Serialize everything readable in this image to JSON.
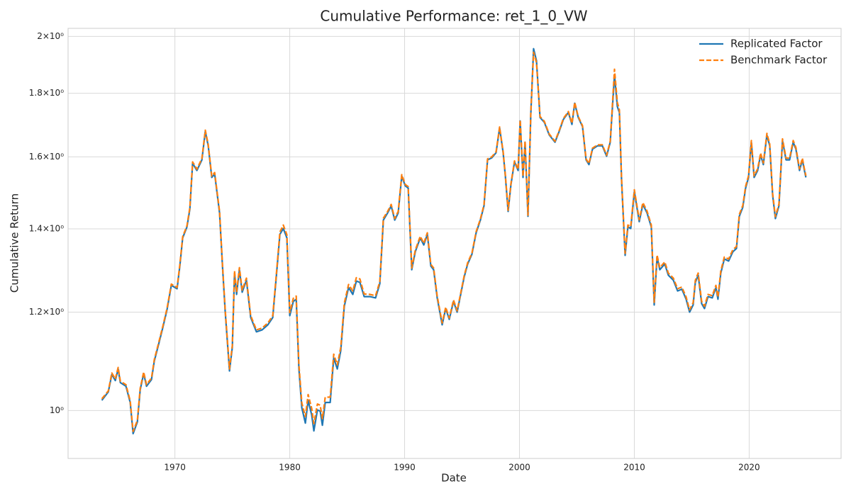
{
  "chart_data": {
    "type": "line",
    "title": "Cumulative Performance: ret_1_0_VW",
    "xlabel": "Date",
    "ylabel": "Cumulative Return",
    "yscale": "log",
    "grid": true,
    "legend": "upper right",
    "xlim": [
      1960.7,
      2028.0
    ],
    "xticks": [
      1970,
      1980,
      1990,
      2000,
      2010,
      2020
    ],
    "ylim": [
      0.915,
      2.03
    ],
    "yticks": [
      {
        "value": 1,
        "label": "10⁰"
      },
      {
        "value": 1.2,
        "label": "1.2×10⁰"
      },
      {
        "value": 1.4,
        "label": "1.4×10⁰"
      },
      {
        "value": 1.6,
        "label": "1.6×10⁰"
      },
      {
        "value": 1.8,
        "label": "1.8×10⁰"
      },
      {
        "value": 2,
        "label": "2×10⁰"
      }
    ],
    "x": [
      1963.64,
      1964.2,
      1964.51,
      1964.81,
      1965.06,
      1965.25,
      1965.74,
      1966.11,
      1966.36,
      1966.73,
      1966.98,
      1967.28,
      1967.53,
      1967.96,
      1968.21,
      1968.58,
      1968.95,
      1969.32,
      1969.69,
      1970.19,
      1970.43,
      1970.68,
      1971.05,
      1971.3,
      1971.54,
      1971.91,
      1972.35,
      1972.65,
      1972.9,
      1973.21,
      1973.46,
      1973.89,
      1974.14,
      1974.38,
      1974.75,
      1975.0,
      1975.19,
      1975.37,
      1975.62,
      1975.86,
      1976.23,
      1976.6,
      1977.1,
      1977.59,
      1978.09,
      1978.52,
      1978.83,
      1979.14,
      1979.44,
      1979.75,
      1980.0,
      1980.31,
      1980.56,
      1980.8,
      1981.05,
      1981.36,
      1981.6,
      1981.91,
      1982.1,
      1982.41,
      1982.65,
      1982.84,
      1983.09,
      1983.52,
      1983.83,
      1984.14,
      1984.44,
      1984.75,
      1985.12,
      1985.49,
      1985.8,
      1986.11,
      1986.48,
      1986.98,
      1987.47,
      1987.84,
      1988.15,
      1988.52,
      1988.83,
      1989.14,
      1989.44,
      1989.75,
      1990.06,
      1990.31,
      1990.62,
      1990.93,
      1991.36,
      1991.67,
      1991.98,
      1992.28,
      1992.53,
      1992.84,
      1993.27,
      1993.58,
      1993.89,
      1994.26,
      1994.57,
      1995.19,
      1995.49,
      1995.86,
      1996.23,
      1996.6,
      1996.91,
      1997.22,
      1997.59,
      1997.96,
      1998.27,
      1998.58,
      1998.77,
      1999.01,
      1999.26,
      1999.57,
      1999.88,
      2000.06,
      2000.31,
      2000.49,
      2000.74,
      2000.99,
      2001.23,
      2001.48,
      2001.79,
      2002.16,
      2002.59,
      2003.09,
      2003.46,
      2003.83,
      2004.26,
      2004.57,
      2004.81,
      2005.12,
      2005.49,
      2005.8,
      2006.05,
      2006.36,
      2006.79,
      2007.22,
      2007.59,
      2007.9,
      2008.27,
      2008.52,
      2008.7,
      2008.89,
      2009.2,
      2009.44,
      2009.69,
      2010.0,
      2010.43,
      2010.74,
      2011.11,
      2011.48,
      2011.73,
      2011.98,
      2012.22,
      2012.65,
      2012.96,
      2013.4,
      2013.77,
      2014.14,
      2014.51,
      2014.81,
      2015.12,
      2015.31,
      2015.56,
      2015.86,
      2016.11,
      2016.42,
      2016.79,
      2017.1,
      2017.28,
      2017.53,
      2017.84,
      2018.21,
      2018.58,
      2018.89,
      2019.14,
      2019.44,
      2019.69,
      2019.94,
      2020.19,
      2020.43,
      2020.74,
      2020.99,
      2021.23,
      2021.54,
      2021.79,
      2022.04,
      2022.28,
      2022.59,
      2022.9,
      2023.21,
      2023.52,
      2023.83,
      2024.07,
      2024.38,
      2024.63,
      2024.81,
      2024.94
    ],
    "series": [
      {
        "name": "Replicated Factor",
        "color": "#1f77b4",
        "linestyle": "solid",
        "values": [
          1.019,
          1.035,
          1.069,
          1.057,
          1.08,
          1.053,
          1.046,
          1.015,
          0.958,
          0.979,
          1.039,
          1.071,
          1.046,
          1.059,
          1.096,
          1.13,
          1.166,
          1.206,
          1.261,
          1.253,
          1.307,
          1.377,
          1.405,
          1.452,
          1.581,
          1.56,
          1.591,
          1.677,
          1.633,
          1.54,
          1.55,
          1.442,
          1.307,
          1.2,
          1.076,
          1.124,
          1.29,
          1.24,
          1.298,
          1.245,
          1.273,
          1.188,
          1.157,
          1.161,
          1.172,
          1.188,
          1.281,
          1.386,
          1.401,
          1.377,
          1.192,
          1.224,
          1.229,
          1.08,
          1.005,
          0.977,
          1.019,
          0.992,
          0.963,
          1.001,
          0.999,
          0.973,
          1.015,
          1.015,
          1.102,
          1.08,
          1.117,
          1.213,
          1.256,
          1.24,
          1.271,
          1.268,
          1.235,
          1.235,
          1.232,
          1.265,
          1.423,
          1.442,
          1.461,
          1.423,
          1.442,
          1.544,
          1.516,
          1.51,
          1.298,
          1.342,
          1.377,
          1.359,
          1.386,
          1.307,
          1.298,
          1.232,
          1.172,
          1.208,
          1.184,
          1.224,
          1.2,
          1.281,
          1.312,
          1.336,
          1.39,
          1.423,
          1.461,
          1.591,
          1.597,
          1.612,
          1.688,
          1.612,
          1.544,
          1.446,
          1.52,
          1.585,
          1.56,
          1.71,
          1.54,
          1.644,
          1.433,
          1.733,
          1.955,
          1.912,
          1.721,
          1.706,
          1.666,
          1.644,
          1.677,
          1.715,
          1.737,
          1.699,
          1.767,
          1.721,
          1.692,
          1.591,
          1.577,
          1.623,
          1.633,
          1.633,
          1.602,
          1.644,
          1.862,
          1.756,
          1.737,
          1.53,
          1.333,
          1.405,
          1.401,
          1.5,
          1.419,
          1.465,
          1.442,
          1.405,
          1.216,
          1.329,
          1.298,
          1.312,
          1.285,
          1.273,
          1.248,
          1.252,
          1.229,
          1.2,
          1.216,
          1.268,
          1.285,
          1.219,
          1.208,
          1.235,
          1.232,
          1.256,
          1.229,
          1.29,
          1.324,
          1.319,
          1.342,
          1.35,
          1.433,
          1.457,
          1.51,
          1.54,
          1.644,
          1.54,
          1.56,
          1.606,
          1.577,
          1.666,
          1.633,
          1.49,
          1.427,
          1.461,
          1.649,
          1.591,
          1.591,
          1.644,
          1.623,
          1.56,
          1.591,
          1.56,
          1.54
        ]
      },
      {
        "name": "Benchmark Factor",
        "color": "#ff7f0e",
        "linestyle": "dashed",
        "values": [
          1.022,
          1.037,
          1.072,
          1.06,
          1.083,
          1.056,
          1.049,
          1.018,
          0.962,
          0.982,
          1.042,
          1.074,
          1.049,
          1.062,
          1.099,
          1.133,
          1.169,
          1.209,
          1.264,
          1.256,
          1.31,
          1.38,
          1.408,
          1.456,
          1.585,
          1.564,
          1.595,
          1.681,
          1.637,
          1.544,
          1.554,
          1.446,
          1.311,
          1.204,
          1.08,
          1.128,
          1.295,
          1.245,
          1.303,
          1.25,
          1.278,
          1.192,
          1.161,
          1.165,
          1.176,
          1.192,
          1.286,
          1.392,
          1.41,
          1.385,
          1.199,
          1.231,
          1.236,
          1.088,
          1.014,
          0.989,
          1.03,
          1.004,
          0.976,
          1.012,
          1.01,
          0.985,
          1.025,
          1.025,
          1.11,
          1.088,
          1.124,
          1.22,
          1.263,
          1.248,
          1.279,
          1.276,
          1.241,
          1.24,
          1.237,
          1.27,
          1.428,
          1.446,
          1.465,
          1.427,
          1.446,
          1.548,
          1.52,
          1.514,
          1.302,
          1.346,
          1.381,
          1.363,
          1.39,
          1.311,
          1.302,
          1.236,
          1.176,
          1.211,
          1.187,
          1.227,
          1.203,
          1.284,
          1.315,
          1.339,
          1.393,
          1.426,
          1.464,
          1.594,
          1.6,
          1.615,
          1.691,
          1.615,
          1.547,
          1.449,
          1.523,
          1.588,
          1.563,
          1.713,
          1.543,
          1.647,
          1.436,
          1.736,
          1.942,
          1.905,
          1.724,
          1.709,
          1.669,
          1.647,
          1.68,
          1.718,
          1.74,
          1.702,
          1.77,
          1.724,
          1.695,
          1.594,
          1.58,
          1.626,
          1.636,
          1.636,
          1.605,
          1.647,
          1.882,
          1.77,
          1.745,
          1.535,
          1.338,
          1.41,
          1.406,
          1.505,
          1.424,
          1.47,
          1.447,
          1.41,
          1.222,
          1.334,
          1.303,
          1.317,
          1.29,
          1.278,
          1.253,
          1.257,
          1.234,
          1.205,
          1.221,
          1.273,
          1.29,
          1.224,
          1.213,
          1.24,
          1.237,
          1.261,
          1.234,
          1.295,
          1.329,
          1.324,
          1.347,
          1.355,
          1.438,
          1.462,
          1.515,
          1.545,
          1.649,
          1.545,
          1.565,
          1.611,
          1.582,
          1.671,
          1.638,
          1.495,
          1.432,
          1.466,
          1.654,
          1.596,
          1.596,
          1.649,
          1.628,
          1.565,
          1.596,
          1.565,
          1.545
        ]
      }
    ]
  }
}
